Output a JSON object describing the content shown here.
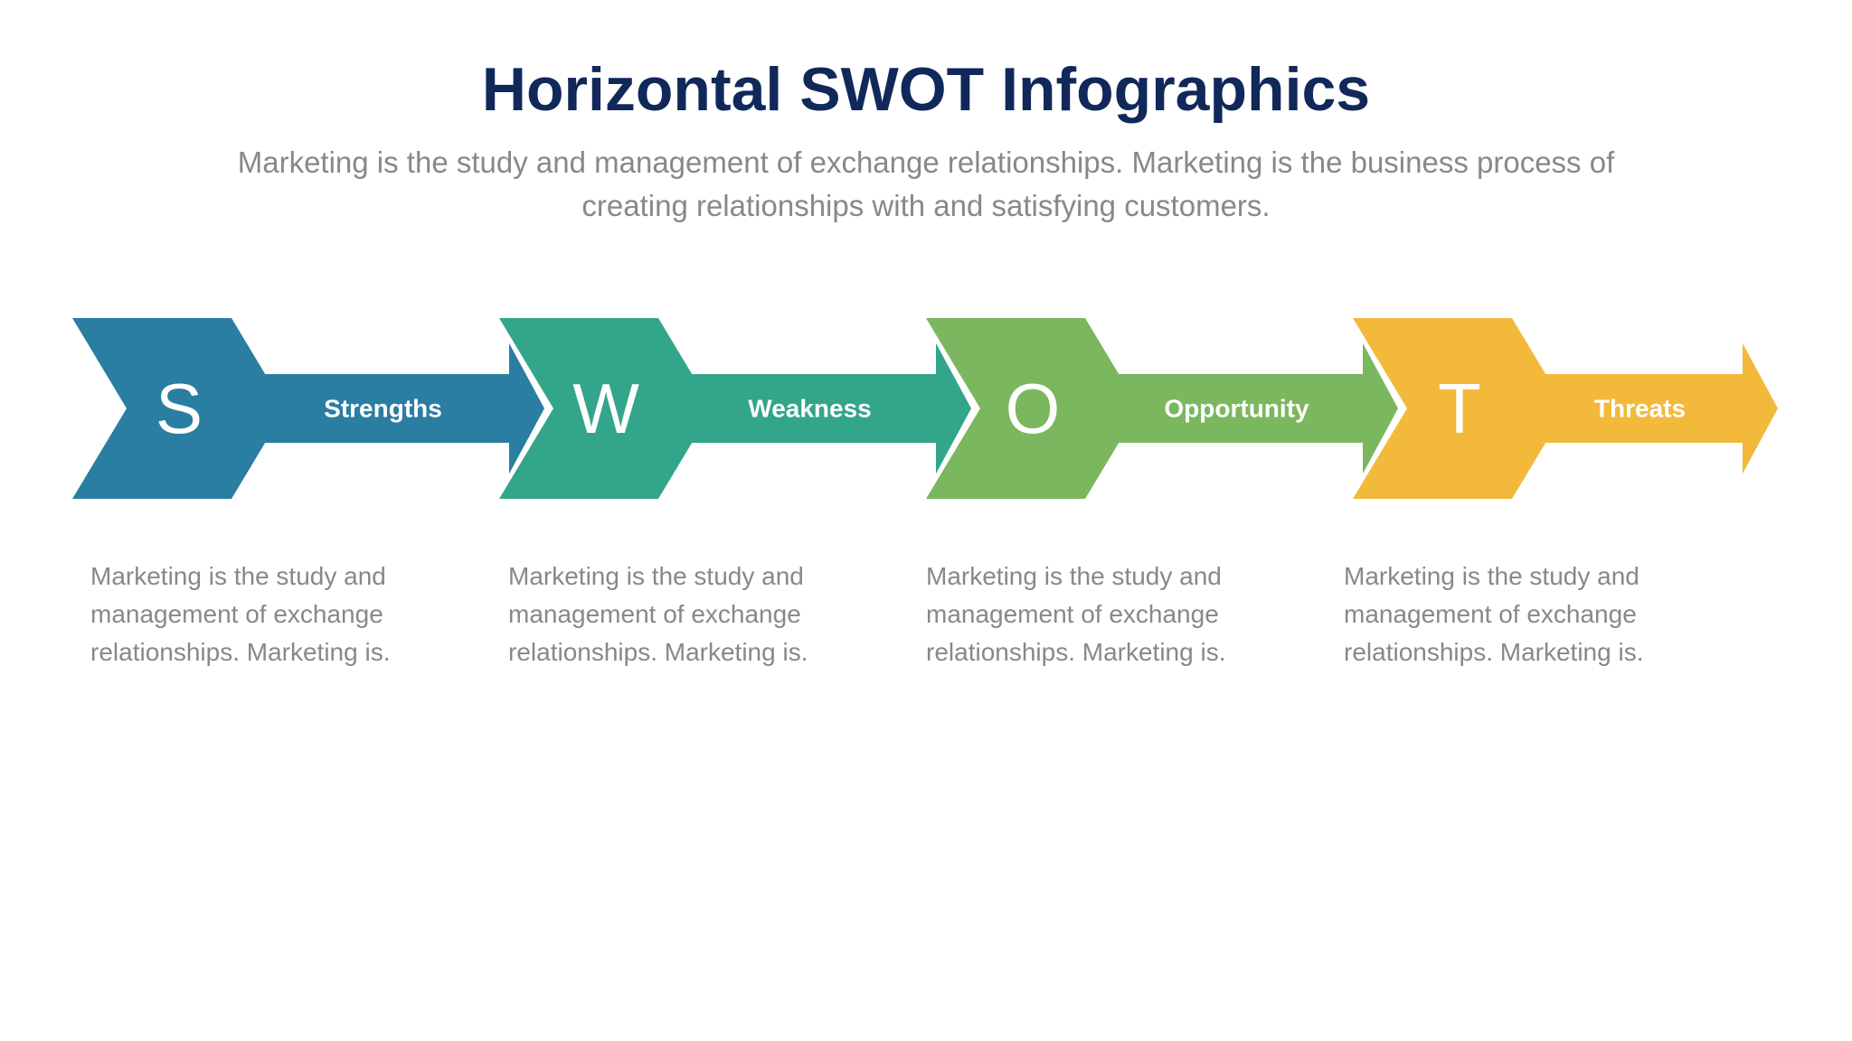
{
  "header": {
    "title": "Horizontal SWOT Infographics",
    "title_color": "#10285a",
    "title_fontsize": 68,
    "title_fontweight": 800,
    "subtitle": "Marketing is the study and management of exchange relationships. Marketing is the business process of creating relationships with and satisfying customers.",
    "subtitle_color": "#888888",
    "subtitle_fontsize": 33
  },
  "background_color": "#ffffff",
  "arrows": {
    "letter_fontsize": 78,
    "label_fontsize": 28,
    "big_height": 200,
    "small_height": 76,
    "notch": 60,
    "items": [
      {
        "letter": "S",
        "label": "Strengths",
        "color": "#2a7ea1",
        "description": "Marketing is the study and management of exchange relationships. Marketing is."
      },
      {
        "letter": "W",
        "label": "Weakness",
        "color": "#32a58a",
        "description": "Marketing is the study and management of exchange relationships. Marketing is."
      },
      {
        "letter": "O",
        "label": "Opportunity",
        "color": "#7bb75e",
        "description": "Marketing is the study and management of exchange relationships. Marketing is."
      },
      {
        "letter": "T",
        "label": "Threats",
        "color": "#f2b93b",
        "description": "Marketing is the study and management of exchange relationships. Marketing is."
      }
    ]
  },
  "description_style": {
    "color": "#888888",
    "fontsize": 28
  }
}
